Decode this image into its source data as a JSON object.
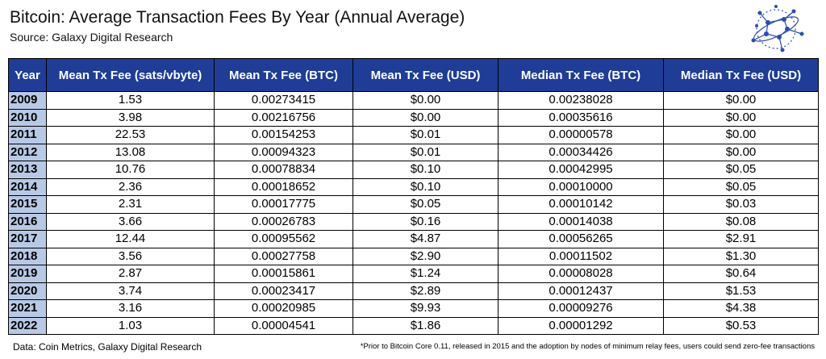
{
  "header": {
    "title": "Bitcoin: Average Transaction Fees By Year (Annual Average)",
    "source": "Source: Galaxy Digital Research"
  },
  "table": {
    "columns": [
      "Year",
      "Mean Tx Fee (sats/vbyte)",
      "Mean Tx Fee (BTC)",
      "Mean Tx Fee (USD)",
      "Median Tx Fee (BTC)",
      "Median Tx Fee (USD)"
    ],
    "rows": [
      [
        "2009",
        "1.53",
        "0.00273415",
        "$0.00",
        "0.00238028",
        "$0.00"
      ],
      [
        "2010",
        "3.98",
        "0.00216756",
        "$0.00",
        "0.00035616",
        "$0.00"
      ],
      [
        "2011",
        "22.53",
        "0.00154253",
        "$0.01",
        "0.00000578",
        "$0.00"
      ],
      [
        "2012",
        "13.08",
        "0.00094323",
        "$0.01",
        "0.00034426",
        "$0.00"
      ],
      [
        "2013",
        "10.76",
        "0.00078834",
        "$0.10",
        "0.00042995",
        "$0.05"
      ],
      [
        "2014",
        "2.36",
        "0.00018652",
        "$0.10",
        "0.00010000",
        "$0.05"
      ],
      [
        "2015",
        "2.31",
        "0.00017775",
        "$0.05",
        "0.00010142",
        "$0.03"
      ],
      [
        "2016",
        "3.66",
        "0.00026783",
        "$0.16",
        "0.00014038",
        "$0.08"
      ],
      [
        "2017",
        "12.44",
        "0.00095562",
        "$4.87",
        "0.00056265",
        "$2.91"
      ],
      [
        "2018",
        "3.56",
        "0.00027758",
        "$2.90",
        "0.00011502",
        "$1.30"
      ],
      [
        "2019",
        "2.87",
        "0.00015861",
        "$1.24",
        "0.00008028",
        "$0.64"
      ],
      [
        "2020",
        "3.74",
        "0.00023417",
        "$2.89",
        "0.00012437",
        "$1.53"
      ],
      [
        "2021",
        "3.16",
        "0.00020985",
        "$9.93",
        "0.00009276",
        "$4.38"
      ],
      [
        "2022",
        "1.03",
        "0.00004541",
        "$1.86",
        "0.00001292",
        "$0.53"
      ]
    ]
  },
  "footer": {
    "data_source": "Data: Coin Metrics, Galaxy Digital Research",
    "note": "*Prior to Bitcoin Core 0.11, released in 2015 and the adoption by nodes of minimum relay fees, users could send zero-fee transactions"
  }
}
